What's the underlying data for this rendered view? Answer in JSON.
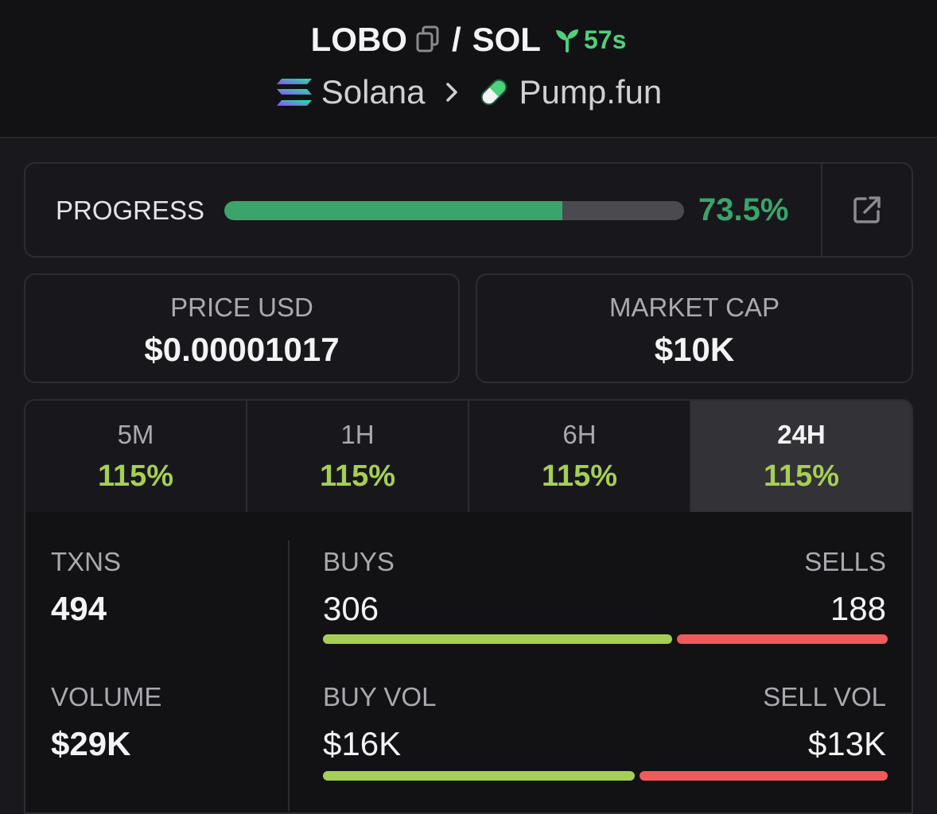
{
  "header": {
    "token": "LOBO",
    "separator": "/",
    "quote": "SOL",
    "age": "57s",
    "chain": "Solana",
    "platform": "Pump.fun"
  },
  "progress": {
    "label": "PROGRESS",
    "value_text": "73.5%",
    "fraction": 0.735
  },
  "price": {
    "label": "PRICE USD",
    "value": "$0.00001017"
  },
  "market_cap": {
    "label": "MARKET CAP",
    "value": "$10K"
  },
  "tabs": [
    {
      "label": "5M",
      "value": "115%"
    },
    {
      "label": "1H",
      "value": "115%"
    },
    {
      "label": "6H",
      "value": "115%"
    },
    {
      "label": "24H",
      "value": "115%",
      "active": true
    }
  ],
  "stats": {
    "txns_label": "TXNS",
    "txns": "494",
    "buys_label": "BUYS",
    "buys": "306",
    "sells_label": "SELLS",
    "sells": "188",
    "volume_label": "VOLUME",
    "volume": "$29K",
    "buy_vol_label": "BUY VOL",
    "buy_vol": "$16K",
    "sell_vol_label": "SELL VOL",
    "sell_vol": "$13K",
    "buys_fraction": 0.619,
    "buy_vol_fraction": 0.552
  },
  "colors": {
    "progress_green": "#3ba46a",
    "change_green": "#a5cf55",
    "sell_red": "#ef5a5a",
    "age_green": "#4fd07a"
  }
}
